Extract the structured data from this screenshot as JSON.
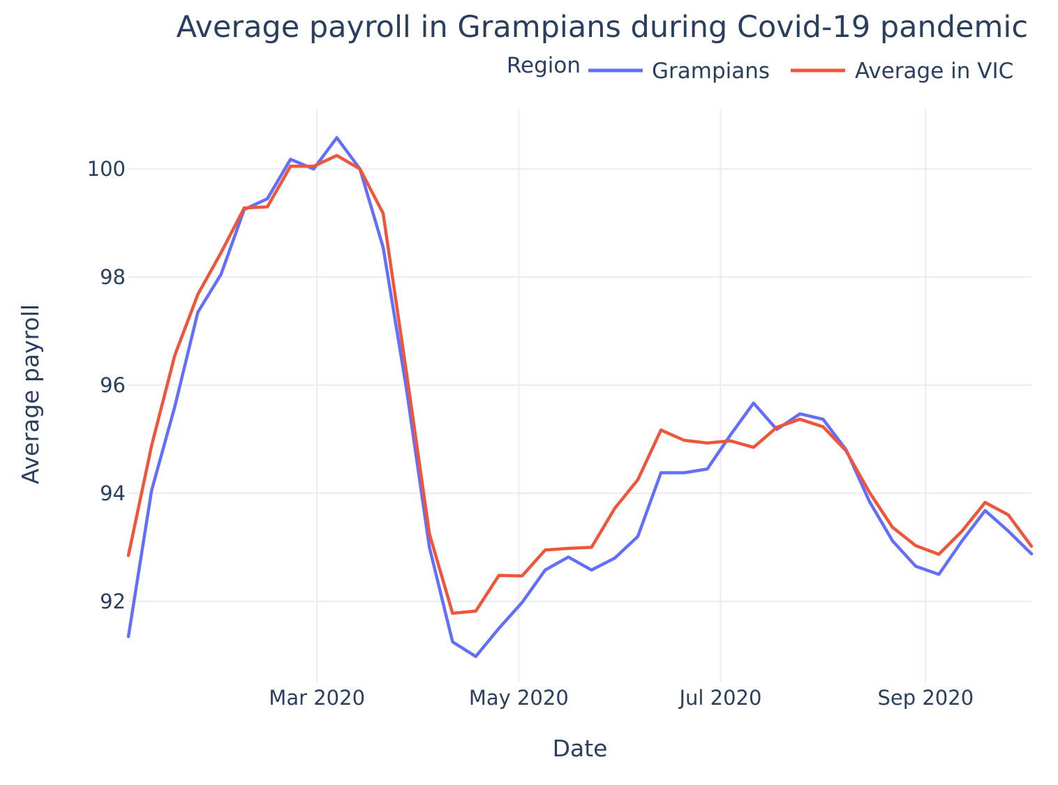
{
  "chart_data": {
    "type": "line",
    "title": "Average payroll in Grampians during Covid-19 pandemic",
    "xlabel": "Date",
    "ylabel": "Average payroll",
    "legend": {
      "title": "Region",
      "placement": "top-right",
      "orientation": "horizontal"
    },
    "grid": true,
    "xlim": [
      "2020-01-04",
      "2020-10-03"
    ],
    "ylim": [
      90.5,
      101.1
    ],
    "x_ticks": [
      {
        "date": "2020-03-01",
        "label": "Mar 2020"
      },
      {
        "date": "2020-05-01",
        "label": "May 2020"
      },
      {
        "date": "2020-07-01",
        "label": "Jul 2020"
      },
      {
        "date": "2020-09-01",
        "label": "Sep 2020"
      }
    ],
    "y_ticks": [
      92,
      94,
      96,
      98,
      100
    ],
    "x": [
      "2020-01-04",
      "2020-01-11",
      "2020-01-18",
      "2020-01-25",
      "2020-02-01",
      "2020-02-08",
      "2020-02-15",
      "2020-02-22",
      "2020-02-29",
      "2020-03-07",
      "2020-03-14",
      "2020-03-21",
      "2020-03-28",
      "2020-04-04",
      "2020-04-11",
      "2020-04-18",
      "2020-04-25",
      "2020-05-02",
      "2020-05-09",
      "2020-05-16",
      "2020-05-23",
      "2020-05-30",
      "2020-06-06",
      "2020-06-13",
      "2020-06-20",
      "2020-06-27",
      "2020-07-04",
      "2020-07-11",
      "2020-07-18",
      "2020-07-25",
      "2020-08-01",
      "2020-08-08",
      "2020-08-15",
      "2020-08-22",
      "2020-08-29",
      "2020-09-05",
      "2020-09-12",
      "2020-09-19",
      "2020-09-26",
      "2020-10-03"
    ],
    "series": [
      {
        "name": "Grampians",
        "color": "#636efa",
        "values": [
          91.35,
          94.05,
          95.6,
          97.35,
          98.05,
          99.25,
          99.45,
          100.18,
          100.0,
          100.58,
          100.0,
          98.55,
          95.95,
          93.0,
          91.25,
          90.98,
          91.5,
          91.98,
          92.58,
          92.82,
          92.58,
          92.8,
          93.2,
          94.38,
          94.38,
          94.45,
          95.08,
          95.67,
          95.18,
          95.47,
          95.37,
          94.8,
          93.85,
          93.12,
          92.65,
          92.5,
          93.12,
          93.68,
          93.3,
          92.88
        ]
      },
      {
        "name": "Average in VIC",
        "color": "#ef553b",
        "values": [
          92.85,
          94.88,
          96.55,
          97.68,
          98.45,
          99.28,
          99.3,
          100.05,
          100.05,
          100.25,
          100.0,
          99.18,
          96.25,
          93.25,
          91.78,
          91.82,
          92.48,
          92.47,
          92.95,
          92.98,
          93.0,
          93.72,
          94.25,
          95.17,
          94.98,
          94.93,
          94.97,
          94.85,
          95.22,
          95.37,
          95.23,
          94.78,
          94.02,
          93.37,
          93.03,
          92.87,
          93.3,
          93.83,
          93.6,
          93.02
        ]
      }
    ]
  }
}
